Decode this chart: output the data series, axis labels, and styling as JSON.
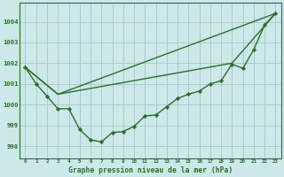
{
  "title": "Graphe pression niveau de la mer (hPa)",
  "bg_color": "#cce8e8",
  "grid_color": "#aacccc",
  "line_color": "#2d6e2d",
  "marker_color": "#2d6e2d",
  "xlim": [
    -0.5,
    23.5
  ],
  "ylim": [
    997.4,
    1004.9
  ],
  "yticks": [
    998,
    999,
    1000,
    1001,
    1002,
    1003,
    1004
  ],
  "xticks": [
    0,
    1,
    2,
    3,
    4,
    5,
    6,
    7,
    8,
    9,
    10,
    11,
    12,
    13,
    14,
    15,
    16,
    17,
    18,
    19,
    20,
    21,
    22,
    23
  ],
  "line1_x": [
    0,
    1,
    2,
    3,
    4,
    5,
    6,
    7,
    8,
    9,
    10,
    11,
    12,
    13,
    14,
    15,
    16,
    17,
    18,
    19,
    20,
    21,
    22,
    23
  ],
  "line1_y": [
    1001.8,
    1001.0,
    1000.4,
    999.8,
    999.8,
    998.8,
    998.3,
    998.2,
    998.65,
    998.7,
    998.95,
    999.45,
    999.5,
    999.9,
    1000.3,
    1000.5,
    1000.65,
    1001.0,
    1001.15,
    1001.95,
    1001.75,
    1002.65,
    1003.85,
    1004.4
  ],
  "line2_x": [
    0,
    3,
    23
  ],
  "line2_y": [
    1001.8,
    1000.5,
    1004.4
  ],
  "line3_x": [
    0,
    3,
    19,
    23
  ],
  "line3_y": [
    1001.8,
    1000.5,
    1002.0,
    1004.4
  ]
}
